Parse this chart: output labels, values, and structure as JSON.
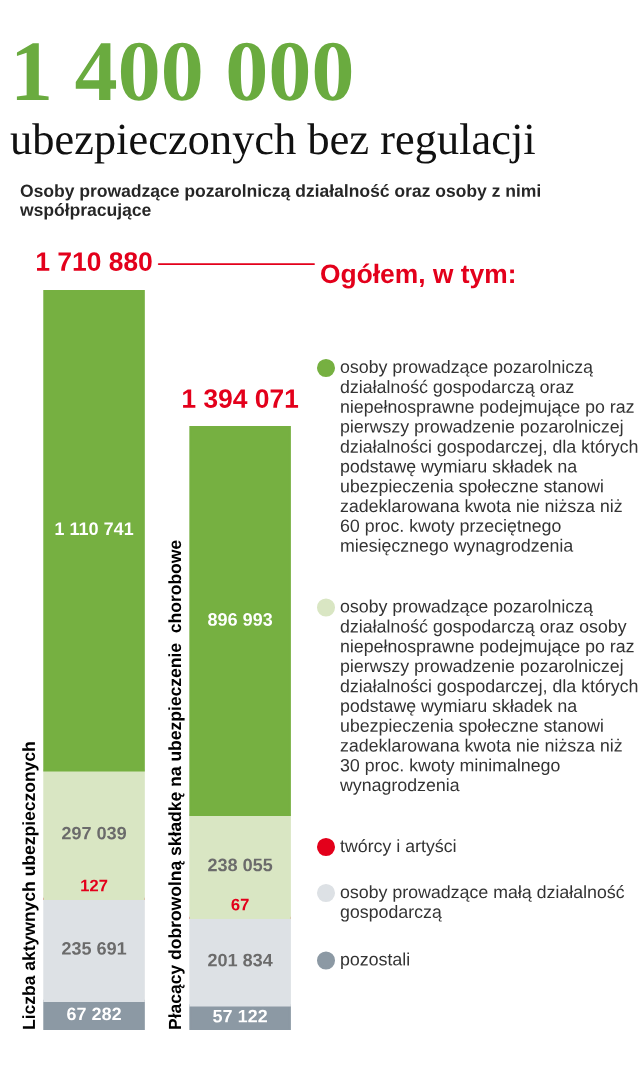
{
  "chart_data": {
    "type": "bar",
    "stacked": true,
    "title": "1 400 000",
    "subtitle": "ubezpieczonych bez regulacji",
    "annotations": [
      "Osoby prowadzące pozarolniczą działalność oraz osoby z nimi współpracujące"
    ],
    "legend_title": "Ogółem, w tym:",
    "legend": "right",
    "categories": [
      "Liczba aktywnych ubezpieczonych",
      "Płacący dobrowolną składkę na ubezpieczenie  chorobowe"
    ],
    "series": [
      {
        "name": "pozostali",
        "color": "#8c99a4",
        "values": [
          67282,
          57122
        ],
        "value_labels": [
          "67 282",
          "57 122"
        ]
      },
      {
        "name": "osoby prowadzące małą działalność gospodarczą",
        "color": "#dde1e5",
        "values": [
          235691,
          201834
        ],
        "value_labels": [
          "235 691",
          "201 834"
        ]
      },
      {
        "name": "twórcy i artyści",
        "color": "#e3001b",
        "values": [
          127,
          67
        ],
        "value_labels": [
          "127",
          "67"
        ]
      },
      {
        "name": "osoby prowadzące pozarolniczą działalność gospodarczą oraz osoby niepełnosprawne podejmujące po raz pierwszy prowadzenie pozarolniczej działalności gospodarczej, dla których podstawę wymiaru składek na ubezpieczenia społeczne stanowi zadeklarowana kwota nie niższa niż 30 proc. kwoty minimalnego wynagrodzenia",
        "color": "#d9e6c3",
        "values": [
          297039,
          238055
        ],
        "value_labels": [
          "297 039",
          "238 055"
        ]
      },
      {
        "name": "osoby prowadzące pozarolniczą działalność gospodarczą oraz niepełnosprawne podejmujące po raz pierwszy prowadzenie pozarolniczej działalności gospodarczej, dla których podstawę wymiaru składek na ubezpieczenia społeczne stanowi zadeklarowana kwota nie niższa niż 60 proc. kwoty przeciętnego miesięcznego wynagrodzenia",
        "color": "#76b041",
        "values": [
          1110741,
          896993
        ],
        "value_labels": [
          "1 110 741",
          "896 993"
        ]
      }
    ],
    "totals": [
      "1 710 880",
      "1 394 071"
    ]
  }
}
